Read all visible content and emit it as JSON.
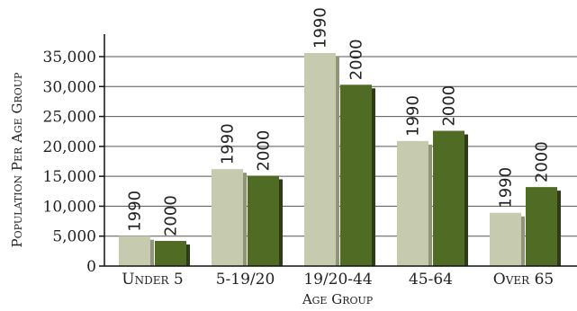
{
  "chart_data": {
    "type": "bar",
    "categories": [
      "Under 5",
      "5-19/20",
      "19/20-44",
      "45-64",
      "Over 65"
    ],
    "series": [
      {
        "name": "1990",
        "values": [
          5000,
          16200,
          35600,
          20900,
          8900
        ],
        "color": "#c6cbb0",
        "shadow": "#8f9576"
      },
      {
        "name": "2000",
        "values": [
          4200,
          15100,
          30300,
          22600,
          13200
        ],
        "color": "#4f6b24",
        "shadow": "#2c3d12"
      }
    ],
    "bar_labels": [
      "1990",
      "2000"
    ],
    "ylim": [
      0,
      40000
    ],
    "yticks": [
      0,
      5000,
      10000,
      15000,
      20000,
      25000,
      30000,
      35000
    ],
    "ytick_labels": [
      "0",
      "5,000",
      "10,000",
      "15,000",
      "20,000",
      "25,000",
      "30,000",
      "35,000"
    ],
    "xlabel": "Age Group",
    "ylabel": "Population Per Age Group",
    "grid": true,
    "legend": "none"
  }
}
